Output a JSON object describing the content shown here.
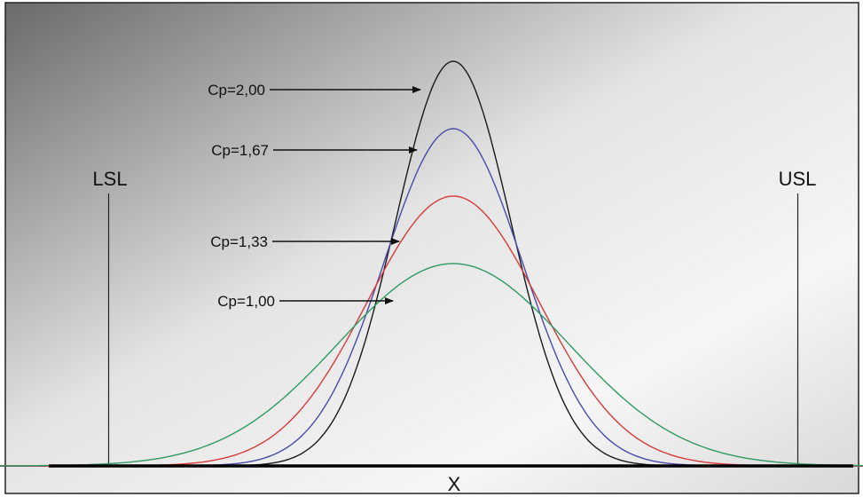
{
  "chart_data": {
    "type": "line",
    "xlabel": "X",
    "limits": {
      "lsl_label": "LSL",
      "usl_label": "USL",
      "lsl": -3,
      "usl": 3
    },
    "x_range": [
      -4.3,
      4.3
    ],
    "series": [
      {
        "name": "Cp=2,00",
        "mean": 0,
        "sd": 0.5,
        "color": "#1a1a1a"
      },
      {
        "name": "Cp=1,67",
        "mean": 0,
        "sd": 0.6,
        "color": "#4a4aa8"
      },
      {
        "name": "Cp=1,33",
        "mean": 0,
        "sd": 0.75,
        "color": "#d83a3a"
      },
      {
        "name": "Cp=1,00",
        "mean": 0,
        "sd": 1.0,
        "color": "#2f9a63"
      }
    ],
    "annotations": [
      "Cp=2,00",
      "Cp=1,67",
      "Cp=1,33",
      "Cp=1,00"
    ],
    "grid": false,
    "legend": "none"
  }
}
